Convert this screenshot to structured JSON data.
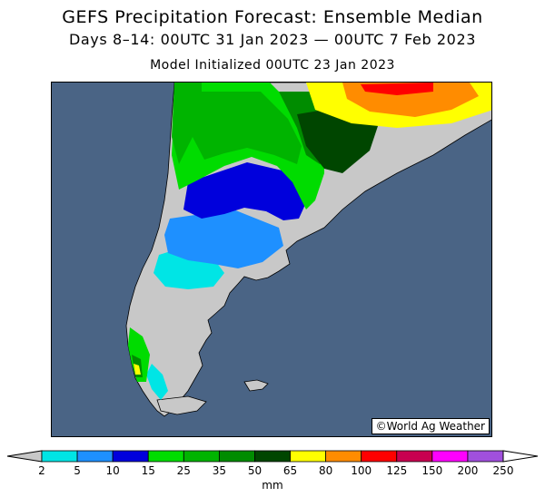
{
  "title": "GEFS Precipitation Forecast: Ensemble Median",
  "subtitle": "Days 8–14: 00UTC 31 Jan 2023 — 00UTC 7 Feb 2023",
  "init_line": "Model Initialized 00UTC 23 Jan 2023",
  "copyright": "©World Ag Weather",
  "colors": {
    "ocean": "#4a6485",
    "no_data": "#c8c8c8"
  },
  "legend": {
    "unit": "mm",
    "ticks": [
      "2",
      "5",
      "10",
      "15",
      "25",
      "35",
      "50",
      "65",
      "80",
      "100",
      "125",
      "150",
      "200",
      "250"
    ],
    "bins": [
      {
        "from": "2",
        "to": "5",
        "color": "#00e5e5"
      },
      {
        "from": "5",
        "to": "10",
        "color": "#1e90ff"
      },
      {
        "from": "10",
        "to": "15",
        "color": "#0000dc"
      },
      {
        "from": "15",
        "to": "25",
        "color": "#00dc00"
      },
      {
        "from": "25",
        "to": "35",
        "color": "#00b400"
      },
      {
        "from": "35",
        "to": "50",
        "color": "#008c00"
      },
      {
        "from": "50",
        "to": "65",
        "color": "#004600"
      },
      {
        "from": "65",
        "to": "80",
        "color": "#ffff00"
      },
      {
        "from": "80",
        "to": "100",
        "color": "#ff8c00"
      },
      {
        "from": "100",
        "to": "125",
        "color": "#ff0000"
      },
      {
        "from": "125",
        "to": "150",
        "color": "#c80050"
      },
      {
        "from": "150",
        "to": "200",
        "color": "#ff00ff"
      },
      {
        "from": "200",
        "to": "250",
        "color": "#a050dc"
      }
    ],
    "under_color": "#c8c8c8",
    "over_color": "#ffffff"
  }
}
